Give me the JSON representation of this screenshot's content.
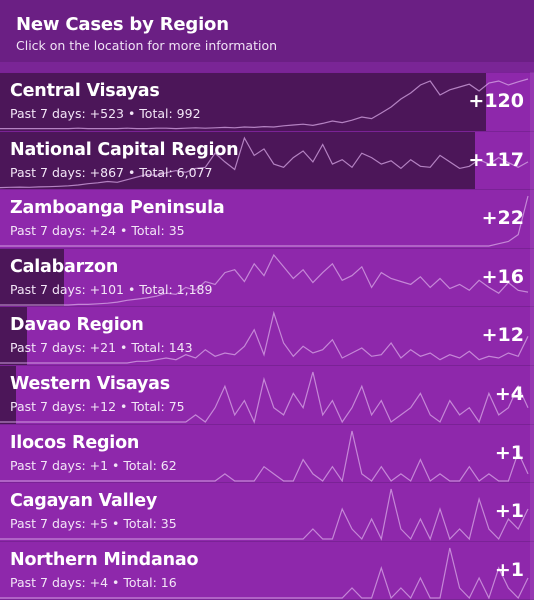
{
  "header": {
    "title": "New Cases by Region",
    "subtitle": "Click on the location for more information"
  },
  "colors": {
    "background": "#8e28ab",
    "header": "#6b1f84",
    "bar": "#4c1659",
    "sparkline": "#d7a7e6"
  },
  "regions": [
    {
      "name": "Central Visayas",
      "stats": "Past 7 days: +523 • Total: 992",
      "delta": "+120",
      "share": 0.91,
      "spark": [
        1,
        1,
        1,
        1,
        1,
        1,
        1,
        1,
        2,
        1,
        1,
        1,
        1,
        2,
        1,
        1,
        2,
        2,
        1,
        2,
        3,
        2,
        3,
        4,
        3,
        5,
        4,
        6,
        5,
        8,
        10,
        12,
        9,
        14,
        20,
        16,
        22,
        30,
        26,
        40,
        55,
        75,
        90,
        110,
        120,
        85,
        98,
        105,
        112,
        95,
        115,
        120,
        110,
        118,
        125
      ]
    },
    {
      "name": "National Capital Region",
      "stats": "Past 7 days: +867 • Total: 6,077",
      "delta": "+117",
      "share": 0.89,
      "spark": [
        2,
        3,
        4,
        3,
        5,
        6,
        8,
        10,
        14,
        20,
        24,
        30,
        26,
        38,
        50,
        62,
        58,
        70,
        80,
        72,
        90,
        95,
        160,
        120,
        85,
        230,
        150,
        180,
        110,
        95,
        140,
        170,
        120,
        200,
        110,
        130,
        95,
        160,
        140,
        110,
        125,
        90,
        130,
        100,
        95,
        150,
        120,
        90,
        100,
        130,
        110,
        140,
        117,
        95,
        120
      ]
    },
    {
      "name": "Zamboanga Peninsula",
      "stats": "Past 7 days: +24 • Total: 35",
      "delta": "+22",
      "share": 0.0,
      "spark": [
        0,
        0,
        0,
        0,
        0,
        0,
        0,
        0,
        0,
        0,
        0,
        0,
        0,
        0,
        0,
        0,
        0,
        0,
        0,
        0,
        0,
        0,
        0,
        0,
        0,
        0,
        0,
        0,
        0,
        0,
        0,
        0,
        0,
        0,
        0,
        0,
        0,
        0,
        0,
        0,
        0,
        0,
        0,
        0,
        0,
        0,
        0,
        0,
        0,
        0,
        0,
        1,
        2,
        5,
        22
      ]
    },
    {
      "name": "Calabarzon",
      "stats": "Past 7 days: +101 • Total: 1,189",
      "delta": "+16",
      "share": 0.12,
      "spark": [
        0,
        0,
        0,
        0,
        0,
        0,
        0,
        0,
        1,
        1,
        2,
        3,
        5,
        8,
        10,
        12,
        15,
        20,
        18,
        30,
        25,
        40,
        35,
        55,
        60,
        40,
        70,
        50,
        85,
        65,
        45,
        60,
        38,
        55,
        70,
        42,
        50,
        65,
        30,
        55,
        45,
        40,
        35,
        48,
        30,
        45,
        28,
        35,
        25,
        42,
        30,
        20,
        38,
        25,
        22
      ]
    },
    {
      "name": "Davao Region",
      "stats": "Past 7 days: +21 • Total: 143",
      "delta": "+12",
      "share": 0.05,
      "spark": [
        0,
        0,
        0,
        0,
        0,
        0,
        0,
        0,
        0,
        0,
        0,
        0,
        0,
        0,
        1,
        1,
        2,
        3,
        2,
        5,
        3,
        8,
        4,
        6,
        5,
        10,
        20,
        5,
        30,
        12,
        4,
        10,
        6,
        8,
        14,
        3,
        6,
        9,
        4,
        5,
        12,
        3,
        8,
        4,
        6,
        2,
        5,
        3,
        7,
        2,
        4,
        3,
        6,
        4,
        16
      ]
    },
    {
      "name": "Western Visayas",
      "stats": "Past 7 days: +12 • Total: 75",
      "delta": "+4",
      "share": 0.03,
      "spark": [
        0,
        0,
        0,
        0,
        0,
        0,
        0,
        0,
        0,
        0,
        0,
        0,
        0,
        0,
        0,
        0,
        0,
        0,
        0,
        0,
        1,
        0,
        2,
        5,
        1,
        3,
        0,
        6,
        2,
        1,
        4,
        2,
        7,
        1,
        3,
        0,
        2,
        5,
        1,
        3,
        0,
        1,
        2,
        4,
        1,
        0,
        3,
        1,
        2,
        0,
        4,
        1,
        2,
        5,
        2
      ]
    },
    {
      "name": "Ilocos Region",
      "stats": "Past 7 days: +1 • Total: 62",
      "delta": "+1",
      "share": 0.0,
      "spark": [
        0,
        0,
        0,
        0,
        0,
        0,
        0,
        0,
        0,
        0,
        0,
        0,
        0,
        0,
        0,
        0,
        0,
        0,
        0,
        0,
        0,
        0,
        0,
        1,
        0,
        0,
        0,
        2,
        1,
        0,
        0,
        3,
        1,
        0,
        2,
        0,
        7,
        1,
        0,
        2,
        0,
        1,
        0,
        3,
        0,
        1,
        0,
        0,
        2,
        0,
        1,
        0,
        0,
        4,
        1
      ]
    },
    {
      "name": "Cagayan Valley",
      "stats": "Past 7 days: +5 • Total: 35",
      "delta": "+1",
      "share": 0.0,
      "spark": [
        0,
        0,
        0,
        0,
        0,
        0,
        0,
        0,
        0,
        0,
        0,
        0,
        0,
        0,
        0,
        0,
        0,
        0,
        0,
        0,
        0,
        0,
        0,
        0,
        0,
        0,
        0,
        0,
        0,
        0,
        0,
        0,
        1,
        0,
        0,
        3,
        1,
        0,
        2,
        0,
        5,
        1,
        0,
        2,
        0,
        3,
        0,
        1,
        0,
        4,
        1,
        0,
        2,
        1,
        3
      ]
    },
    {
      "name": "Northern Mindanao",
      "stats": "Past 7 days: +4 • Total: 16",
      "delta": "+1",
      "share": 0.0,
      "spark": [
        0,
        0,
        0,
        0,
        0,
        0,
        0,
        0,
        0,
        0,
        0,
        0,
        0,
        0,
        0,
        0,
        0,
        0,
        0,
        0,
        0,
        0,
        0,
        0,
        0,
        0,
        0,
        0,
        0,
        0,
        0,
        0,
        0,
        0,
        0,
        0,
        1,
        0,
        0,
        3,
        0,
        1,
        0,
        2,
        0,
        0,
        5,
        1,
        0,
        2,
        0,
        3,
        1,
        0,
        2
      ]
    }
  ]
}
